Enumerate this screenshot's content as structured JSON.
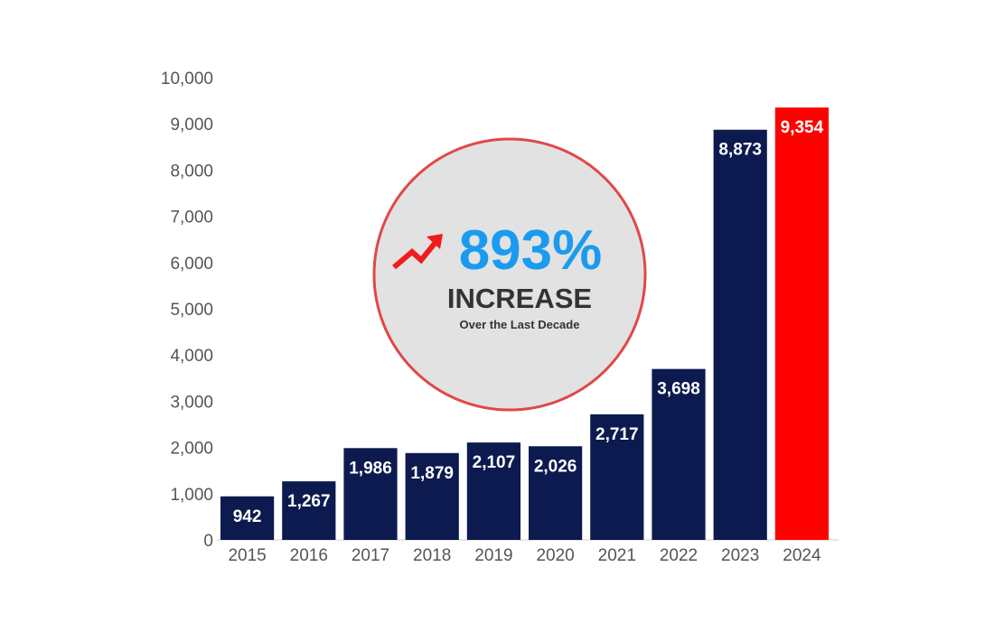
{
  "chart_data": {
    "type": "bar",
    "categories": [
      "2015",
      "2016",
      "2017",
      "2018",
      "2019",
      "2020",
      "2021",
      "2022",
      "2023",
      "2024"
    ],
    "values": [
      942,
      1267,
      1986,
      1879,
      2107,
      2026,
      2717,
      3698,
      8873,
      9354
    ],
    "value_labels": [
      "942",
      "1,267",
      "1,986",
      "1,879",
      "2,107",
      "2,026",
      "2,717",
      "3,698",
      "8,873",
      "9,354"
    ],
    "ylim": [
      0,
      10000
    ],
    "y_ticks": [
      0,
      1000,
      2000,
      3000,
      4000,
      5000,
      6000,
      7000,
      8000,
      9000,
      10000
    ],
    "y_tick_labels": [
      "0",
      "1,000",
      "2,000",
      "3,000",
      "4,000",
      "5,000",
      "6,000",
      "7,000",
      "8,000",
      "9,000",
      "10,000"
    ],
    "grid": false,
    "legend": "none",
    "colors": {
      "bar": "#0c1a4f",
      "highlight_bar": "#ff0000",
      "highlight_category": "2024"
    },
    "annotation": {
      "number": "893%",
      "word": "INCREASE",
      "subtitle": "Over the Last Decade",
      "icon": "trend-up-arrow-icon",
      "colors": {
        "circle_fill": "#e2e2e2",
        "circle_stroke": "#e04848",
        "number": "#1a9bf0",
        "word": "#333333",
        "subtitle": "#333333",
        "arrow": "#ee1c1c"
      }
    }
  }
}
